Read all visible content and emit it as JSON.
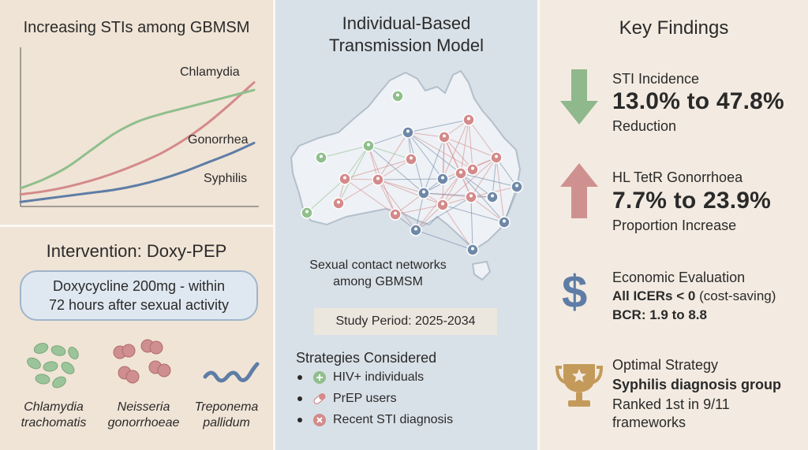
{
  "chart_panel": {
    "title": "Increasing STIs among GBMSM",
    "chart_data": {
      "type": "line",
      "title": "Increasing STIs among GBMSM",
      "xlabel": "",
      "ylabel": "",
      "x": [
        0,
        1,
        2,
        3,
        4,
        5,
        6,
        7,
        8,
        9,
        10
      ],
      "series": [
        {
          "name": "Chlamydia",
          "color": "#d48a8a",
          "values": [
            8,
            10,
            13,
            17,
            22,
            28,
            35,
            44,
            55,
            68,
            82
          ]
        },
        {
          "name": "Gonorrhea",
          "color": "#8fbf8c",
          "values": [
            12,
            18,
            26,
            37,
            48,
            56,
            61,
            65,
            69,
            73,
            77
          ]
        },
        {
          "name": "Syphilis",
          "color": "#5e7da6",
          "values": [
            3,
            5,
            7,
            9,
            11,
            14,
            18,
            23,
            29,
            35,
            42
          ]
        }
      ],
      "labels": [
        "Chlamydia",
        "Gonorrhea",
        "Syphilis"
      ],
      "ylim": [
        0,
        100
      ],
      "grid": false
    }
  },
  "intervention": {
    "title": "Intervention: Doxy-PEP",
    "dose_line1": "Doxycycline 200mg - within",
    "dose_line2": "72 hours after sexual activity",
    "organisms": [
      {
        "line1": "Chlamydia",
        "line2": "trachomatis"
      },
      {
        "line1": "Neisseria",
        "line2": "gonorrhoeae"
      },
      {
        "line1": "Treponema",
        "line2": "pallidum"
      }
    ]
  },
  "model": {
    "title_line1": "Individual-Based",
    "title_line2": "Transmission Model",
    "caption_line1": "Sexual contact networks",
    "caption_line2": "among GBMSM",
    "study_period": "Study Period: 2025-2034",
    "strategies_title": "Strategies Considered",
    "strategies": [
      {
        "label": "HIV+ individuals",
        "icon": "plus-circle-icon",
        "color": "#8fbf8c"
      },
      {
        "label": "PrEP users",
        "icon": "pill-icon",
        "color": "#d48a8a"
      },
      {
        "label": "Recent STI diagnosis",
        "icon": "x-circle-icon",
        "color": "#d48a8a"
      }
    ]
  },
  "findings": {
    "title": "Key Findings",
    "incidence": {
      "label": "STI Incidence",
      "value": "13.0% to 47.8%",
      "sub": "Reduction",
      "icon": "arrow-down-icon",
      "color": "#8fb88c"
    },
    "tetr": {
      "label": "HL TetR Gonorrhoea",
      "value": "7.7% to 23.9%",
      "sub": "Proportion Increase",
      "icon": "arrow-up-icon",
      "color": "#cf9190"
    },
    "economic": {
      "label": "Economic Evaluation",
      "icers_bold": "All ICERs < 0",
      "icers_rest": " (cost-saving)",
      "bcr": "BCR: 1.9 to 8.8",
      "icon": "dollar-icon",
      "color": "#5e7da6"
    },
    "optimal": {
      "label": "Optimal Strategy",
      "group": "Syphilis diagnosis group",
      "rank_line1": "Ranked 1st in 9/11",
      "rank_line2": "frameworks",
      "icon": "trophy-icon",
      "color": "#c49a5a"
    }
  }
}
